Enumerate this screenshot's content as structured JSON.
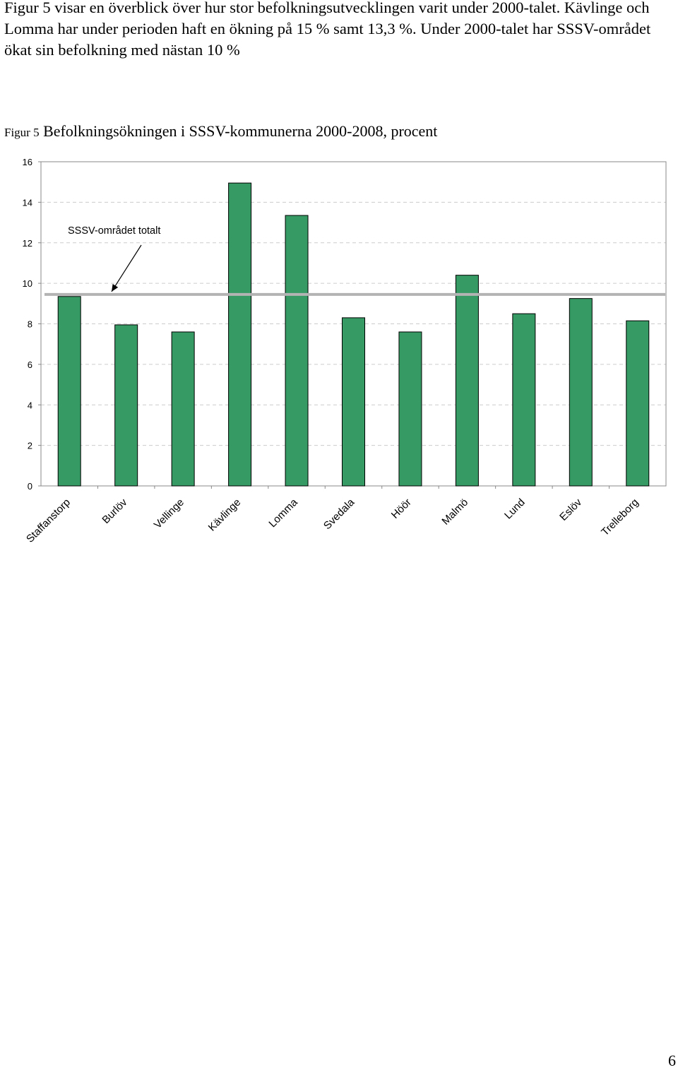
{
  "intro_text": "Figur 5 visar en överblick över hur stor befolkningsutvecklingen varit under 2000-talet. Kävlinge och Lomma har under perioden haft en ökning på 15 % samt 13,3 %. Under 2000-talet har SSSV-området ökat sin befolkning med nästan 10 %",
  "caption": {
    "prefix": "Figur 5",
    "text": "Befolkningsökningen i SSSV-kommunerna 2000-2008, procent"
  },
  "page_number": "6",
  "colors": {
    "bar_fill": "#359a63",
    "bar_stroke": "#000000",
    "reference_line": "#b3b3b3",
    "grid": "#cccccc"
  },
  "chart_data": {
    "type": "bar",
    "categories": [
      "Staffanstorp",
      "Burlöv",
      "Vellinge",
      "Kävlinge",
      "Lomma",
      "Svedala",
      "Höör",
      "Malmö",
      "Lund",
      "Eslöv",
      "Trelleborg"
    ],
    "values": [
      9.35,
      7.95,
      7.6,
      14.95,
      13.35,
      8.3,
      7.6,
      10.4,
      8.5,
      9.25,
      8.15
    ],
    "ylim": [
      0,
      16
    ],
    "yticks": [
      0,
      2,
      4,
      6,
      8,
      10,
      12,
      14,
      16
    ],
    "grid": true,
    "reference_line": {
      "label": "SSSV-området totalt",
      "value": 9.45
    }
  }
}
